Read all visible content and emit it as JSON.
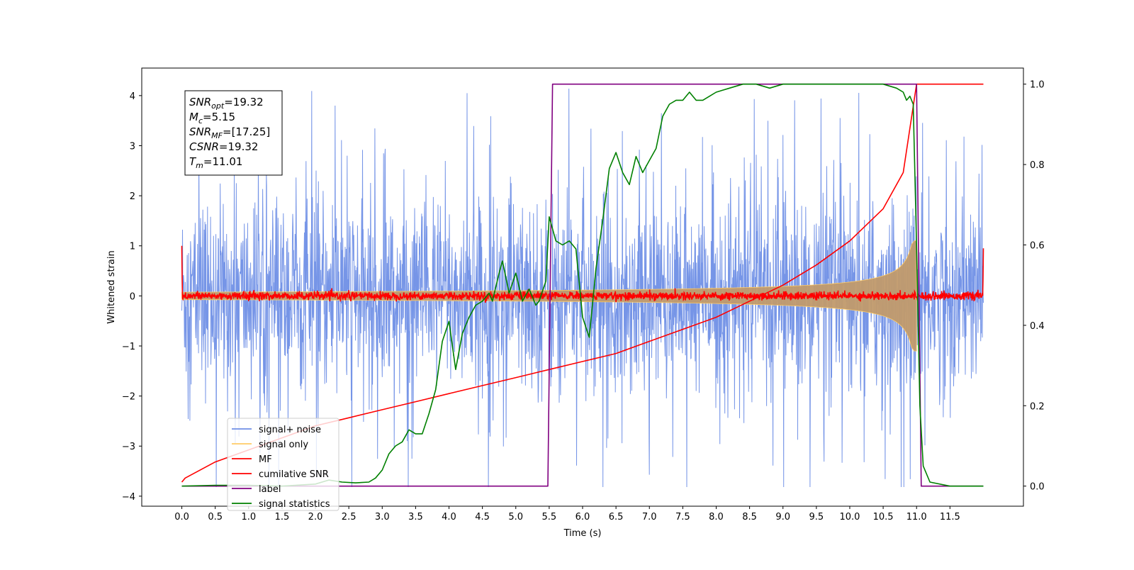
{
  "chart_data": {
    "type": "line",
    "xlabel": "Time (s)",
    "ylabel": "Whitened strain",
    "xlim": [
      -0.6,
      12.6
    ],
    "ylim": [
      -4.2,
      4.55
    ],
    "ylim_right": [
      -0.05,
      1.04
    ],
    "x_ticks": [
      0.0,
      0.5,
      1.0,
      1.5,
      2.0,
      2.5,
      3.0,
      3.5,
      4.0,
      4.5,
      5.0,
      5.5,
      6.0,
      6.5,
      7.0,
      7.5,
      8.0,
      8.5,
      9.0,
      9.5,
      10.0,
      10.5,
      11.0,
      11.5
    ],
    "x_tick_labels": [
      "0.0",
      "0.5",
      "1.0",
      "1.5",
      "2.0",
      "2.5",
      "3.0",
      "3.5",
      "4.0",
      "4.5",
      "5.0",
      "5.5",
      "6.0",
      "6.5",
      "7.0",
      "7.5",
      "8.0",
      "8.5",
      "9.0",
      "9.5",
      "10.0",
      "10.5",
      "11.0",
      "11.5"
    ],
    "y_ticks": [
      -4,
      -3,
      -2,
      -1,
      0,
      1,
      2,
      3,
      4
    ],
    "y_tick_labels": [
      "−4",
      "−3",
      "−2",
      "−1",
      "0",
      "1",
      "2",
      "3",
      "4"
    ],
    "y_right_ticks": [
      0.0,
      0.2,
      0.4,
      0.6,
      0.8,
      1.0
    ],
    "y_right_tick_labels": [
      "0.0",
      "0.2",
      "0.4",
      "0.6",
      "0.8",
      "1.0"
    ],
    "legend_position": "lower-left",
    "annotation": {
      "lines": [
        {
          "sym": "SNR",
          "sub": "opt",
          "val": "=19.32"
        },
        {
          "sym": "M",
          "sub": "c",
          "val": "=5.15"
        },
        {
          "sym": "SNR",
          "sub": "MF",
          "val": "=[17.25]"
        },
        {
          "sym": "CSNR",
          "sub": "",
          "val": "=19.32"
        },
        {
          "sym": "T",
          "sub": "m",
          "val": "=11.01"
        }
      ]
    },
    "series": [
      {
        "name": "signal+ noise",
        "color": "#6f8fe6",
        "axis": "left",
        "kind": "noise",
        "x_range": [
          0.0,
          12.0
        ],
        "envelope": [
          -2.5,
          2.5
        ],
        "spikes_max": 4.15
      },
      {
        "name": "signal only",
        "color": "#ffcc66",
        "axis": "left",
        "kind": "chirp",
        "x_range": [
          0.0,
          11.0
        ],
        "amp_start": 0.05,
        "amp_end": 1.1
      },
      {
        "name": "MF",
        "color": "#ff0000",
        "axis": "left",
        "kind": "noise",
        "x_range": [
          0.0,
          12.0
        ],
        "envelope": [
          -0.1,
          0.12
        ],
        "edges": [
          1.0,
          0.95
        ]
      },
      {
        "name": "cumilative SNR",
        "color": "#ff0000",
        "axis": "right",
        "x": [
          0.0,
          0.05,
          0.5,
          1.0,
          1.5,
          2.0,
          2.5,
          3.0,
          3.5,
          4.0,
          4.5,
          5.0,
          5.5,
          6.0,
          6.5,
          7.0,
          7.5,
          8.0,
          8.5,
          9.0,
          9.5,
          10.0,
          10.5,
          10.8,
          11.0,
          12.0
        ],
        "y": [
          0.01,
          0.02,
          0.06,
          0.09,
          0.12,
          0.15,
          0.17,
          0.19,
          0.21,
          0.23,
          0.25,
          0.27,
          0.29,
          0.31,
          0.33,
          0.36,
          0.39,
          0.42,
          0.46,
          0.5,
          0.55,
          0.61,
          0.69,
          0.78,
          1.0,
          1.0
        ]
      },
      {
        "name": "label",
        "color": "#800080",
        "axis": "right",
        "x": [
          0.0,
          5.48,
          5.55,
          11.0,
          11.07,
          12.0
        ],
        "y": [
          0.0,
          0.0,
          1.0,
          1.0,
          0.0,
          0.0
        ]
      },
      {
        "name": "signal statistics",
        "color": "#008000",
        "axis": "right",
        "x": [
          0.0,
          0.5,
          1.0,
          1.5,
          2.0,
          2.2,
          2.4,
          2.6,
          2.8,
          2.9,
          3.0,
          3.1,
          3.2,
          3.3,
          3.4,
          3.5,
          3.6,
          3.7,
          3.8,
          3.9,
          4.0,
          4.1,
          4.2,
          4.3,
          4.4,
          4.5,
          4.6,
          4.65,
          4.75,
          4.8,
          4.9,
          5.0,
          5.1,
          5.2,
          5.3,
          5.35,
          5.45,
          5.5,
          5.6,
          5.7,
          5.8,
          5.9,
          6.0,
          6.1,
          6.2,
          6.3,
          6.4,
          6.5,
          6.6,
          6.7,
          6.8,
          6.9,
          7.0,
          7.1,
          7.2,
          7.3,
          7.4,
          7.5,
          7.6,
          7.7,
          7.8,
          7.9,
          8.0,
          8.2,
          8.4,
          8.6,
          8.8,
          9.0,
          9.5,
          10.0,
          10.5,
          10.7,
          10.8,
          10.85,
          10.9,
          10.95,
          11.0,
          11.05,
          11.1,
          11.2,
          11.5,
          12.0
        ],
        "y": [
          0.0,
          0.002,
          0.002,
          0.0,
          0.005,
          0.015,
          0.01,
          0.008,
          0.01,
          0.02,
          0.04,
          0.08,
          0.1,
          0.11,
          0.14,
          0.13,
          0.13,
          0.18,
          0.24,
          0.36,
          0.41,
          0.29,
          0.38,
          0.42,
          0.45,
          0.46,
          0.48,
          0.46,
          0.53,
          0.56,
          0.48,
          0.53,
          0.46,
          0.49,
          0.45,
          0.46,
          0.51,
          0.67,
          0.61,
          0.6,
          0.61,
          0.59,
          0.42,
          0.37,
          0.54,
          0.66,
          0.79,
          0.83,
          0.78,
          0.75,
          0.82,
          0.78,
          0.81,
          0.84,
          0.92,
          0.95,
          0.96,
          0.96,
          0.98,
          0.96,
          0.96,
          0.97,
          0.98,
          0.99,
          1.0,
          1.0,
          0.99,
          1.0,
          1.0,
          1.0,
          1.0,
          0.99,
          0.98,
          0.96,
          0.97,
          0.95,
          0.6,
          0.2,
          0.05,
          0.01,
          0.0,
          0.0
        ]
      }
    ]
  }
}
